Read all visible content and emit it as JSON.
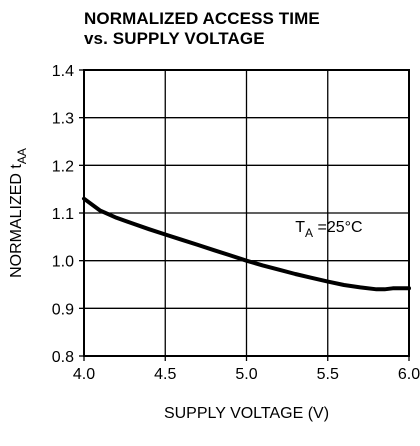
{
  "chart_data": {
    "type": "line",
    "title_line1": "NORMALIZED ACCESS TIME",
    "title_line2": "vs. SUPPLY VOLTAGE",
    "xlabel": "SUPPLY VOLTAGE (V)",
    "ylabel_main": "NORMALIZED t",
    "ylabel_sub": "AA",
    "xlim": [
      4.0,
      6.0
    ],
    "ylim": [
      0.8,
      1.4
    ],
    "x_ticks": [
      "4.0",
      "4.5",
      "5.0",
      "5.5",
      "6.0"
    ],
    "y_ticks": [
      "0.8",
      "0.9",
      "1.0",
      "1.1",
      "1.2",
      "1.3",
      "1.4"
    ],
    "grid": true,
    "annotation": {
      "main": "T",
      "sub": "A",
      "rest": " =25°C",
      "x": 5.3,
      "y": 1.06
    },
    "series": [
      {
        "x": [
          4.0,
          4.1,
          4.2,
          4.3,
          4.4,
          4.5,
          4.6,
          4.7,
          4.8,
          4.9,
          5.0,
          5.1,
          5.2,
          5.3,
          5.4,
          5.5,
          5.6,
          5.7,
          5.8,
          5.85,
          5.9,
          6.0
        ],
        "values": [
          1.13,
          1.105,
          1.09,
          1.078,
          1.066,
          1.055,
          1.044,
          1.033,
          1.022,
          1.011,
          1.0,
          0.99,
          0.981,
          0.972,
          0.964,
          0.956,
          0.949,
          0.944,
          0.94,
          0.94,
          0.942,
          0.942
        ]
      }
    ]
  }
}
